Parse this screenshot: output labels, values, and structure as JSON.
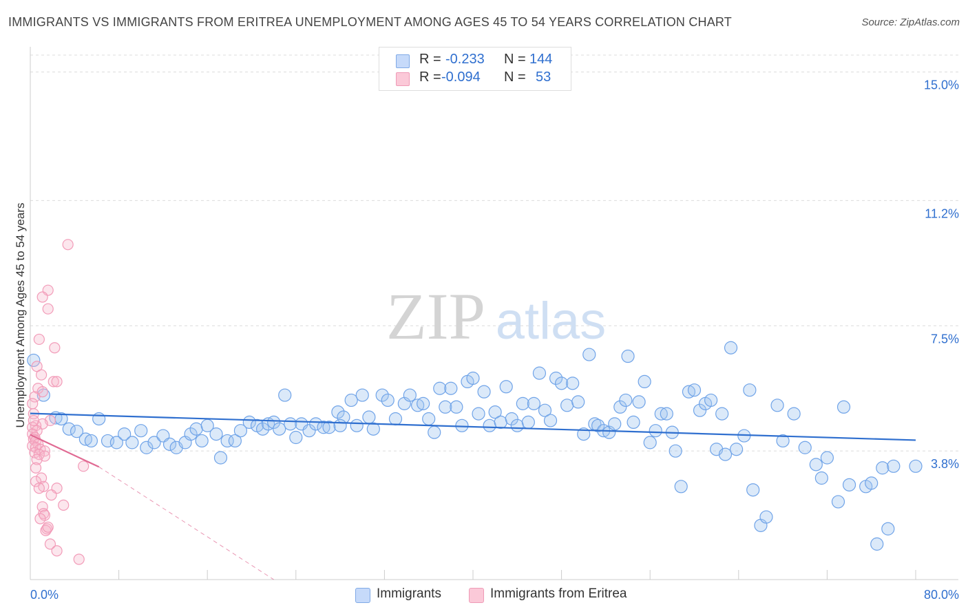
{
  "title": "IMMIGRANTS VS IMMIGRANTS FROM ERITREA UNEMPLOYMENT AMONG AGES 45 TO 54 YEARS CORRELATION CHART",
  "source": "Source: ZipAtlas.com",
  "watermark": {
    "zip": "ZIP",
    "atlas": "atlas"
  },
  "legend": {
    "r_label": "R =",
    "n_label": "N =",
    "rows": [
      {
        "r": "-0.233",
        "n": "144"
      },
      {
        "r": "-0.094",
        "n": "53"
      }
    ]
  },
  "chart_data": {
    "type": "scatter",
    "title": "IMMIGRANTS VS IMMIGRANTS FROM ERITREA UNEMPLOYMENT AMONG AGES 45 TO 54 YEARS CORRELATION CHART",
    "xlabel": "",
    "ylabel": "Unemployment Among Ages 45 to 54 years",
    "xlim": [
      0,
      80
    ],
    "ylim": [
      0,
      15.5
    ],
    "x_tick_labels": [
      "0.0%",
      "80.0%"
    ],
    "y_ticks": [
      3.8,
      7.5,
      11.2,
      15.0
    ],
    "y_tick_labels": [
      "3.8%",
      "7.5%",
      "11.2%",
      "15.0%"
    ],
    "grid": true,
    "legend_position": "bottom",
    "series": [
      {
        "name": "Immigrants",
        "color": "#6fa3e8",
        "line_color": "#2f6fcf",
        "r": -0.233,
        "n": 144,
        "trend": {
          "x": [
            0,
            80
          ],
          "y": [
            4.91,
            4.12
          ]
        },
        "points": [
          [
            0.3,
            6.48
          ],
          [
            1.2,
            5.45
          ],
          [
            2.3,
            4.78
          ],
          [
            2.8,
            4.75
          ],
          [
            3.5,
            4.45
          ],
          [
            4.2,
            4.38
          ],
          [
            5.0,
            4.15
          ],
          [
            5.5,
            4.1
          ],
          [
            6.2,
            4.75
          ],
          [
            7.0,
            4.1
          ],
          [
            7.8,
            4.05
          ],
          [
            8.5,
            4.3
          ],
          [
            9.2,
            4.05
          ],
          [
            10.0,
            4.4
          ],
          [
            10.5,
            3.9
          ],
          [
            11.2,
            4.05
          ],
          [
            12.0,
            4.25
          ],
          [
            12.6,
            4.0
          ],
          [
            13.2,
            3.9
          ],
          [
            14.0,
            4.05
          ],
          [
            14.5,
            4.3
          ],
          [
            15.0,
            4.45
          ],
          [
            15.5,
            4.1
          ],
          [
            16.0,
            4.55
          ],
          [
            16.8,
            4.3
          ],
          [
            17.2,
            3.6
          ],
          [
            17.8,
            4.1
          ],
          [
            18.5,
            4.1
          ],
          [
            19.0,
            4.4
          ],
          [
            19.8,
            4.65
          ],
          [
            20.5,
            4.55
          ],
          [
            21.0,
            4.45
          ],
          [
            21.5,
            4.6
          ],
          [
            22.0,
            4.65
          ],
          [
            22.5,
            4.45
          ],
          [
            23.0,
            5.45
          ],
          [
            23.5,
            4.6
          ],
          [
            24.0,
            4.2
          ],
          [
            24.5,
            4.6
          ],
          [
            25.2,
            4.4
          ],
          [
            25.8,
            4.6
          ],
          [
            26.5,
            4.5
          ],
          [
            27.0,
            4.5
          ],
          [
            27.8,
            4.95
          ],
          [
            28.3,
            4.8
          ],
          [
            29.0,
            5.3
          ],
          [
            29.5,
            4.55
          ],
          [
            30.0,
            5.45
          ],
          [
            30.6,
            4.8
          ],
          [
            31.0,
            4.45
          ],
          [
            31.8,
            5.45
          ],
          [
            32.3,
            5.3
          ],
          [
            33.0,
            4.75
          ],
          [
            33.8,
            5.2
          ],
          [
            34.3,
            5.45
          ],
          [
            35.0,
            5.15
          ],
          [
            35.5,
            5.2
          ],
          [
            36.0,
            4.75
          ],
          [
            36.5,
            4.35
          ],
          [
            37.0,
            5.65
          ],
          [
            37.5,
            5.1
          ],
          [
            38.0,
            5.65
          ],
          [
            38.5,
            5.1
          ],
          [
            39.0,
            4.55
          ],
          [
            39.5,
            5.85
          ],
          [
            40.0,
            5.95
          ],
          [
            40.5,
            4.9
          ],
          [
            41.0,
            5.55
          ],
          [
            41.5,
            4.55
          ],
          [
            42.0,
            4.95
          ],
          [
            42.5,
            4.65
          ],
          [
            43.0,
            5.7
          ],
          [
            43.5,
            4.75
          ],
          [
            44.0,
            4.55
          ],
          [
            44.5,
            5.2
          ],
          [
            45.0,
            4.65
          ],
          [
            45.5,
            5.2
          ],
          [
            46.0,
            6.1
          ],
          [
            46.5,
            5.0
          ],
          [
            47.0,
            4.7
          ],
          [
            47.5,
            5.95
          ],
          [
            48.0,
            5.8
          ],
          [
            48.5,
            5.15
          ],
          [
            49.0,
            5.8
          ],
          [
            49.5,
            5.25
          ],
          [
            50.0,
            4.3
          ],
          [
            50.5,
            6.65
          ],
          [
            51.0,
            4.6
          ],
          [
            51.3,
            4.55
          ],
          [
            51.8,
            4.4
          ],
          [
            52.3,
            4.35
          ],
          [
            52.8,
            4.6
          ],
          [
            53.3,
            5.1
          ],
          [
            53.8,
            5.3
          ],
          [
            54.0,
            6.6
          ],
          [
            54.5,
            4.65
          ],
          [
            55.0,
            5.25
          ],
          [
            55.5,
            5.85
          ],
          [
            56.0,
            4.05
          ],
          [
            56.5,
            4.4
          ],
          [
            57.0,
            4.9
          ],
          [
            57.5,
            4.9
          ],
          [
            58.0,
            4.35
          ],
          [
            58.3,
            3.8
          ],
          [
            58.8,
            2.75
          ],
          [
            59.5,
            5.55
          ],
          [
            60.0,
            5.6
          ],
          [
            60.5,
            5.0
          ],
          [
            61.0,
            5.2
          ],
          [
            61.5,
            5.3
          ],
          [
            62.0,
            3.85
          ],
          [
            62.5,
            4.9
          ],
          [
            62.8,
            3.7
          ],
          [
            63.3,
            6.85
          ],
          [
            63.8,
            3.85
          ],
          [
            64.5,
            4.25
          ],
          [
            65.0,
            5.6
          ],
          [
            65.3,
            2.65
          ],
          [
            66.0,
            1.6
          ],
          [
            66.5,
            1.85
          ],
          [
            67.5,
            5.15
          ],
          [
            68.0,
            4.1
          ],
          [
            69.0,
            4.9
          ],
          [
            70.0,
            3.9
          ],
          [
            71.0,
            3.4
          ],
          [
            71.5,
            3.0
          ],
          [
            72.0,
            3.6
          ],
          [
            73.0,
            2.3
          ],
          [
            73.5,
            5.1
          ],
          [
            74.0,
            2.8
          ],
          [
            75.5,
            2.75
          ],
          [
            76.0,
            2.85
          ],
          [
            76.5,
            1.05
          ],
          [
            77.0,
            3.3
          ],
          [
            77.5,
            1.5
          ],
          [
            78.0,
            3.35
          ],
          [
            80.0,
            3.35
          ],
          [
            28.0,
            4.55
          ]
        ]
      },
      {
        "name": "Immigrants from Eritrea",
        "color": "#f29bb8",
        "line_color": "#e06a93",
        "r": -0.094,
        "n": 53,
        "trend_solid": {
          "x": [
            0,
            6.2
          ],
          "y": [
            4.28,
            3.33
          ]
        },
        "trend_dashed": {
          "x": [
            6.2,
            22
          ],
          "y": [
            3.33,
            0.0
          ]
        },
        "points": [
          [
            3.4,
            9.9
          ],
          [
            1.6,
            8.55
          ],
          [
            1.1,
            8.35
          ],
          [
            1.6,
            8.0
          ],
          [
            0.8,
            7.1
          ],
          [
            2.2,
            6.85
          ],
          [
            0.6,
            6.3
          ],
          [
            1.0,
            6.05
          ],
          [
            2.1,
            5.85
          ],
          [
            2.4,
            5.85
          ],
          [
            0.7,
            5.65
          ],
          [
            1.1,
            5.55
          ],
          [
            0.4,
            5.4
          ],
          [
            0.2,
            5.2
          ],
          [
            0.3,
            4.9
          ],
          [
            1.8,
            4.7
          ],
          [
            1.1,
            4.6
          ],
          [
            0.5,
            4.55
          ],
          [
            0.2,
            4.5
          ],
          [
            0.6,
            4.4
          ],
          [
            0.2,
            4.3
          ],
          [
            0.4,
            4.2
          ],
          [
            0.3,
            4.15
          ],
          [
            0.5,
            4.1
          ],
          [
            0.7,
            4.0
          ],
          [
            0.2,
            3.95
          ],
          [
            0.5,
            3.9
          ],
          [
            0.9,
            3.85
          ],
          [
            1.3,
            3.8
          ],
          [
            0.4,
            3.75
          ],
          [
            0.8,
            3.7
          ],
          [
            1.3,
            3.65
          ],
          [
            0.6,
            3.55
          ],
          [
            4.8,
            3.35
          ],
          [
            0.5,
            3.3
          ],
          [
            1.0,
            3.0
          ],
          [
            0.5,
            2.9
          ],
          [
            1.2,
            2.75
          ],
          [
            0.8,
            2.7
          ],
          [
            2.4,
            2.7
          ],
          [
            1.9,
            2.5
          ],
          [
            3.0,
            2.2
          ],
          [
            1.1,
            2.15
          ],
          [
            1.2,
            1.95
          ],
          [
            1.3,
            1.9
          ],
          [
            0.9,
            1.8
          ],
          [
            1.5,
            1.5
          ],
          [
            1.4,
            1.45
          ],
          [
            1.8,
            1.05
          ],
          [
            2.4,
            0.85
          ],
          [
            4.4,
            0.6
          ],
          [
            1.6,
            1.55
          ],
          [
            0.3,
            4.7
          ]
        ]
      }
    ]
  }
}
